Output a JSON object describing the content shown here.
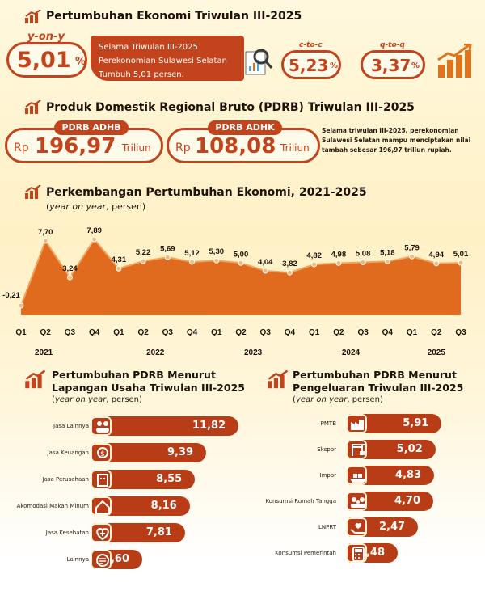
{
  "section1": {
    "title": "Pertumbuhan Ekonomi Triwulan III-2025",
    "yoy": {
      "label": "y-on-y",
      "value": "5,01",
      "unit": "%"
    },
    "description": "Selama Triwulan III-2025 Perekonomian Sulawesi Selatan Tumbuh 5,01 persen.",
    "ctoc": {
      "label": "c-to-c",
      "value": "5,23",
      "unit": "%"
    },
    "qtoq": {
      "label": "q-to-q",
      "value": "3,37",
      "unit": "%"
    }
  },
  "section2": {
    "title": "Produk Domestik Regional Bruto (PDRB) Triwulan III-2025",
    "adhb": {
      "label": "PDRB ADHB",
      "prefix": "Rp",
      "value": "196,97",
      "suffix": "Triliun"
    },
    "adhk": {
      "label": "PDRB ADHK",
      "prefix": "Rp",
      "value": "108,08",
      "suffix": "Triliun"
    },
    "note": "Selama triwulan III-2025, perekonomian Sulawesi Selatan mampu menciptakan nilai tambah sebesar 196,97 triliun rupiah."
  },
  "section3": {
    "title": "Perkembangan Pertumbuhan Ekonomi, 2021-2025",
    "subtitle_italic": "year on year",
    "subtitle_rest": ", persen)"
  },
  "chart_data": {
    "type": "area",
    "title": "Perkembangan Pertumbuhan Ekonomi, 2021-2025",
    "x": [
      "Q1",
      "Q2",
      "Q3",
      "Q4",
      "Q1",
      "Q2",
      "Q3",
      "Q4",
      "Q1",
      "Q2",
      "Q3",
      "Q4",
      "Q1",
      "Q2",
      "Q3",
      "Q4",
      "Q1",
      "Q2",
      "Q3"
    ],
    "years": [
      "2021",
      "2022",
      "2023",
      "2024",
      "2025"
    ],
    "values": [
      -0.21,
      7.7,
      3.24,
      7.89,
      4.31,
      5.22,
      5.69,
      5.12,
      5.3,
      5.0,
      4.04,
      3.82,
      4.82,
      4.98,
      5.08,
      5.18,
      5.79,
      4.94,
      5.01
    ],
    "labels": [
      "-0,21",
      "7,70",
      "3,24",
      "7,89",
      "4,31",
      "5,22",
      "5,69",
      "5,12",
      "5,30",
      "5,00",
      "4,04",
      "3,82",
      "4,82",
      "4,98",
      "5,08",
      "5,18",
      "5,79",
      "4,94",
      "5,01"
    ],
    "ylim": [
      -0.5,
      9
    ],
    "color": "#e06a1e"
  },
  "section4": {
    "title_line1": "Pertumbuhan PDRB Menurut",
    "title_line2": "Lapangan Usaha Triwulan III-2025",
    "subtitle_italic": "year on year",
    "subtitle_rest": ", persen)",
    "bars": [
      {
        "label": "Jasa Lainnya",
        "value": 11.82,
        "text": "11,82",
        "icon": "people-icon"
      },
      {
        "label": "Jasa Keuangan",
        "value": 9.39,
        "text": "9,39",
        "icon": "money-icon"
      },
      {
        "label": "Jasa Perusahaan",
        "value": 8.55,
        "text": "8,55",
        "icon": "building-icon"
      },
      {
        "label": "Akomodasi Makan Minum",
        "value": 8.16,
        "text": "8,16",
        "icon": "house-icon"
      },
      {
        "label": "Jasa Kesehatan",
        "value": 7.81,
        "text": "7,81",
        "icon": "health-icon"
      },
      {
        "label": "Lainnya",
        "value": 4.6,
        "text": "4,60",
        "icon": "other-icon"
      }
    ]
  },
  "section5": {
    "title_line1": "Pertumbuhan PDRB Menurut",
    "title_line2": "Pengeluaran Triwulan III-2025",
    "subtitle_italic": "year on year",
    "subtitle_rest": ", persen)",
    "bars": [
      {
        "label": "PMTB",
        "value": 5.91,
        "text": "5,91",
        "icon": "factory-icon"
      },
      {
        "label": "Ekspor",
        "value": 5.02,
        "text": "5,02",
        "icon": "crane-icon"
      },
      {
        "label": "Impor",
        "value": 4.83,
        "text": "4,83",
        "icon": "ship-icon"
      },
      {
        "label": "Konsumsi Rumah Tangga",
        "value": 4.7,
        "text": "4,70",
        "icon": "family-icon"
      },
      {
        "label": "LNPRT",
        "value": 2.47,
        "text": "2,47",
        "icon": "charity-icon"
      },
      {
        "label": "Konsumsi Pemerintah",
        "value": -0.48,
        "text": "-0,48",
        "icon": "calculator-icon"
      }
    ]
  }
}
